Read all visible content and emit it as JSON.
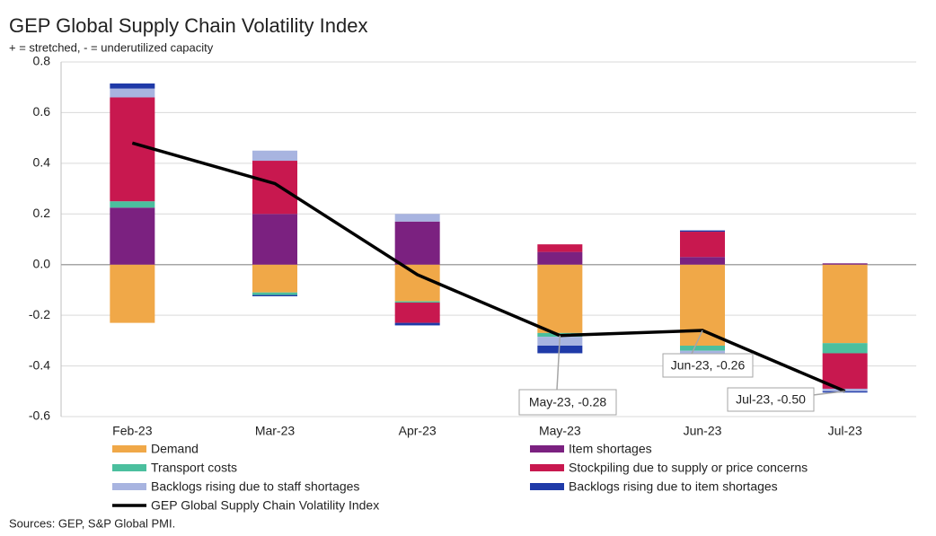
{
  "chart_data": {
    "type": "bar",
    "stacked": true,
    "title": "GEP Global Supply Chain Volatility Index",
    "subtitle": "+ = stretched, - = underutilized capacity",
    "source": "Sources: GEP, S&P Global PMI.",
    "categories": [
      "Feb-23",
      "Mar-23",
      "Apr-23",
      "May-23",
      "Jun-23",
      "Jul-23"
    ],
    "ylim": [
      -0.6,
      0.8
    ],
    "yticks": [
      -0.6,
      -0.4,
      -0.2,
      {
        "value": 0,
        "label": "0.0"
      },
      0.2,
      0.4,
      0.6,
      0.8
    ],
    "grid": true,
    "series": [
      {
        "name": "Demand",
        "color": "#f0a848",
        "values": [
          -0.23,
          -0.11,
          -0.145,
          -0.27,
          -0.32,
          -0.31
        ]
      },
      {
        "name": "Item shortages",
        "color": "#7b2180",
        "values": [
          0.225,
          0.2,
          0.17,
          0.05,
          0.03,
          0.005
        ]
      },
      {
        "name": "Transport costs",
        "color": "#4bbf9e",
        "values": [
          0.025,
          -0.01,
          -0.005,
          -0.015,
          -0.02,
          -0.04
        ]
      },
      {
        "name": "Stockpiling due to supply or price concerns",
        "color": "#c8184f",
        "values": [
          0.41,
          0.21,
          -0.08,
          0.03,
          0.1,
          -0.14
        ]
      },
      {
        "name": "Backlogs rising due to staff shortages",
        "color": "#a8b4e0",
        "values": [
          0.035,
          0.04,
          0.03,
          -0.035,
          -0.01,
          -0.01
        ]
      },
      {
        "name": "Backlogs rising due to item shortages",
        "color": "#1f3aa8",
        "values": [
          0.02,
          -0.005,
          -0.01,
          -0.03,
          0.005,
          -0.005
        ]
      },
      {
        "name": "GEP Global Supply Chain Volatility Index",
        "type": "line",
        "color": "#000000",
        "values": [
          0.48,
          0.32,
          -0.04,
          -0.28,
          -0.26,
          -0.5
        ]
      }
    ],
    "annotations": [
      "May-23, -0.28",
      "Jun-23, -0.26",
      "Jul-23, -0.50"
    ]
  }
}
